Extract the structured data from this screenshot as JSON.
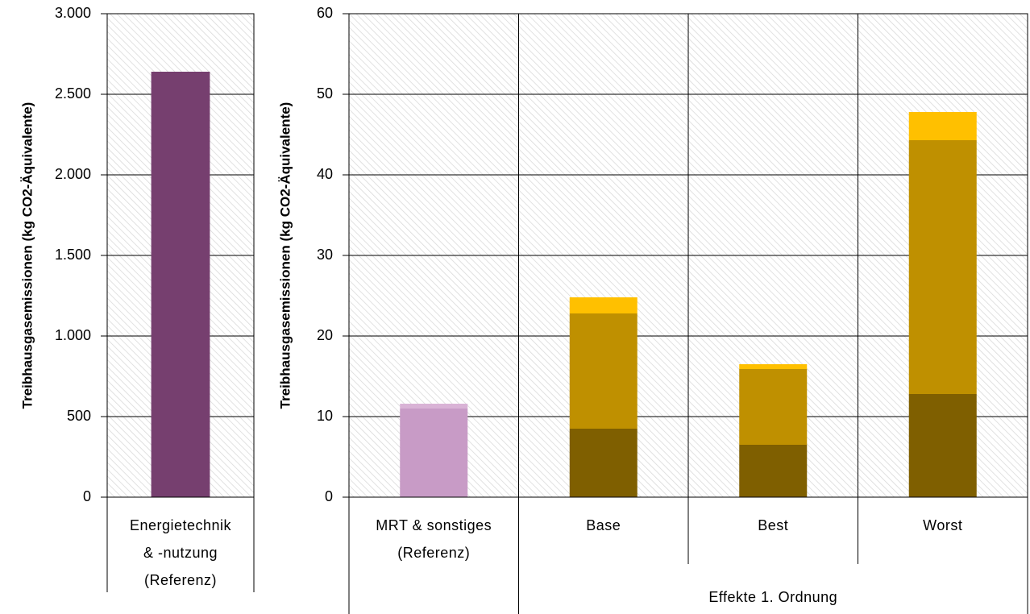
{
  "chart_data": [
    {
      "type": "bar",
      "ylabel": "Treibhausgasemissionen  (kg CO2-Äquivalente)",
      "categories": [
        "Energietechnik\n& -nutzung\n(Referenz)"
      ],
      "values": [
        2640
      ],
      "color": "#763f6f",
      "ylim": [
        0,
        3000
      ],
      "yticks": [
        0,
        500,
        {
          "value": 1000,
          "label": "1.000"
        },
        {
          "value": 1500,
          "label": "1.500"
        },
        {
          "value": 2000,
          "label": "2.000"
        },
        {
          "value": 2500,
          "label": "2.500"
        },
        {
          "value": 3000,
          "label": "3.000"
        }
      ],
      "grid": true
    },
    {
      "type": "stacked_bar",
      "ylabel": "Treibhausgasemissionen  (kg CO2-Äquivalente)",
      "categories": [
        "MRT & sonstiges\n(Referenz)",
        "Base",
        "Best",
        "Worst"
      ],
      "group_label": "Effekte 1. Ordnung",
      "series": [
        {
          "colors": [
            "#c89bc6",
            "#7f5f00",
            "#7f5f00",
            "#7f5f00"
          ],
          "values": [
            11.0,
            8.5,
            6.5,
            12.8
          ]
        },
        {
          "colors": [
            "#d9b3d6",
            "#bf9000",
            "#bf9000",
            "#bf9000"
          ],
          "values": [
            0.6,
            14.3,
            9.4,
            31.5
          ]
        },
        {
          "colors": [
            "#d9b3d6",
            "#ffc000",
            "#ffc000",
            "#ffc000"
          ],
          "values": [
            0,
            2.0,
            0.6,
            3.5
          ]
        }
      ],
      "ylim": [
        0,
        60
      ],
      "yticks": [
        0,
        10,
        20,
        30,
        40,
        50,
        60
      ],
      "grid": true
    }
  ]
}
